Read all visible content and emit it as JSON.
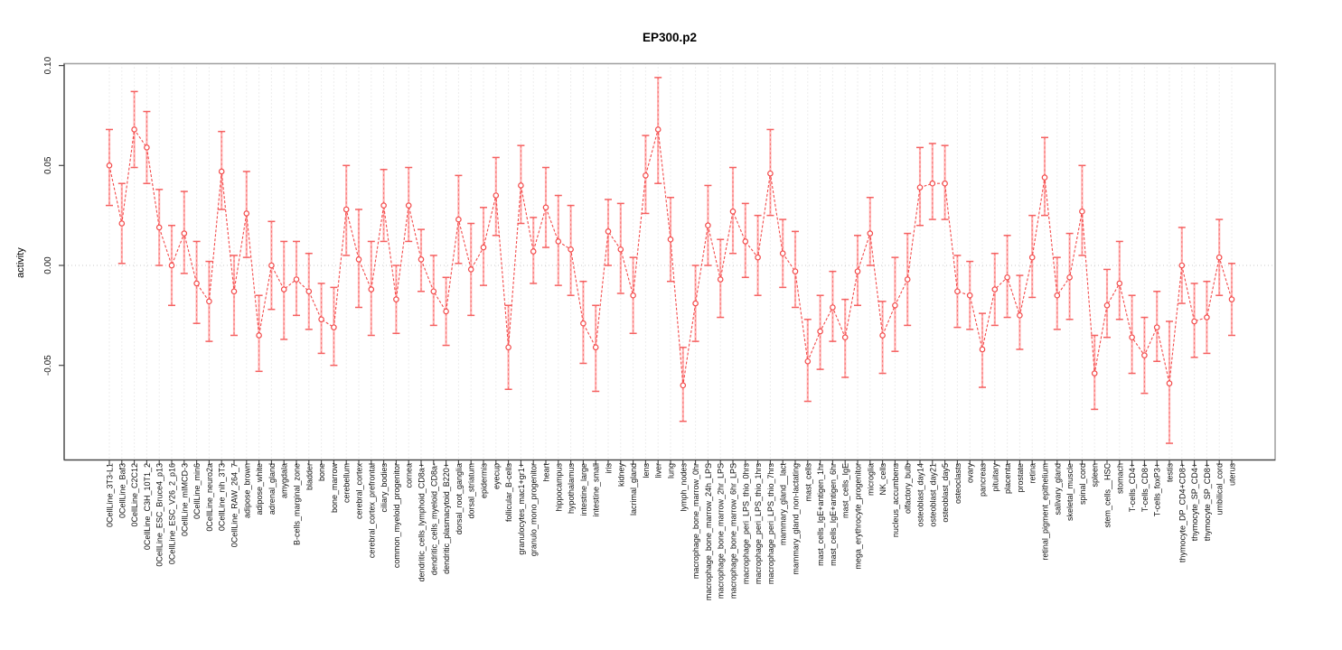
{
  "window": {
    "title": "EP300.p2"
  },
  "chart_data": {
    "type": "line",
    "subtype": "points-with-error-bars",
    "title": "EP300.p2",
    "xlabel": "",
    "ylabel": "activity",
    "ylim": [
      -0.097,
      0.101
    ],
    "yticks": [
      0.1,
      0.05,
      0.0,
      -0.05
    ],
    "ytick_labels": [
      "0.10",
      "0.05",
      "0.00",
      "-0.05"
    ],
    "grid": "vertical dotted gridline at every category; horizontal dotted line at y=0",
    "legend_position": "none",
    "categories": [
      "0CellLine_3T3-L1",
      "0CellLine_Baf3",
      "0CellLine_C2C12",
      "0CellLine_C3H_10T1_2",
      "0CellLine_ESC_Bruce4_p13",
      "0CellLine_ESC_V26_2_p16",
      "0CellLine_mIMCD-3",
      "0CellLine_min6",
      "0CellLine_neuro2a",
      "0CellLine_nih_3T3",
      "0CellLine_RAW_264_7",
      "adipose_brown",
      "adipose_white",
      "adrenal_gland",
      "amygdala",
      "B-cells_marginal_zone",
      "bladder",
      "bone",
      "bone_marrow",
      "cerebellum",
      "cerebral_cortex",
      "cerebral_cortex_prefrontal",
      "ciliary_bodies",
      "common_myeloid_progenitor",
      "cornea",
      "dendritic_cells_lymphoid_CD8a+",
      "dendritic_cells_myeloid_CD8a-",
      "dendritic_plasmacytoid_B220+",
      "dorsal_root_ganglia",
      "dorsal_striatum",
      "epidermis",
      "eyecup",
      "follicular_B-cells",
      "granulocytes_mac1+gr1+",
      "granulo_mono_progenitor",
      "heart",
      "hippocampus",
      "hypothalamus",
      "intestine_large",
      "intestine_small",
      "iris",
      "kidney",
      "lacrimal_gland",
      "lens",
      "liver",
      "lung",
      "lymph_nodes",
      "macrophage_bone_marrow_0hr",
      "macrophage_bone_marrow_24h_LPS",
      "macrophage_bone_marrow_2hr_LPS",
      "macrophage_bone_marrow_6hr_LPS",
      "macrophage_peri_LPS_thio_0hrs",
      "macrophage_peri_LPS_thio_1hrs",
      "macrophage_peri_LPS_thio_7hrs",
      "mammary_gland__lact",
      "mammary_gland_non-lactating",
      "mast_cells",
      "mast_cells_IgE+antigen_1hr",
      "mast_cells_IgE+antigen_6hr",
      "mast_cells_IgE",
      "mega_erythrocyte_progenitor",
      "microglia",
      "NK_cells",
      "nucleus_accumbens",
      "olfactory_bulb",
      "osteoblast_day14",
      "osteoblast_day21",
      "osteoblast_day5",
      "osteoclasts",
      "ovary",
      "pancreas",
      "pituitary",
      "placenta",
      "prostate",
      "retina",
      "retinal_pigment_epithelium",
      "salivary_gland",
      "skeletal_muscle",
      "spinal_cord",
      "spleen",
      "stem_cells__HSC",
      "stomach",
      "T-cells_CD4+",
      "T-cells_CD8+",
      "T-cells_foxP3+",
      "testis",
      "thymocyte_DP_CD4+CD8+",
      "thymocyte_SP_CD4+",
      "thymocyte_SP_CD8+",
      "umbilical_cord",
      "uterus"
    ],
    "values": [
      0.05,
      0.021,
      0.068,
      0.059,
      0.019,
      0.0,
      0.016,
      -0.009,
      -0.018,
      0.047,
      -0.013,
      0.026,
      -0.035,
      0.0,
      -0.012,
      -0.007,
      -0.013,
      -0.027,
      -0.031,
      0.028,
      0.003,
      -0.012,
      0.03,
      -0.017,
      0.03,
      0.003,
      -0.013,
      -0.023,
      0.023,
      -0.002,
      0.009,
      0.035,
      -0.041,
      0.04,
      0.007,
      0.029,
      0.012,
      0.008,
      -0.029,
      -0.041,
      0.017,
      0.008,
      -0.015,
      0.045,
      0.068,
      0.013,
      -0.06,
      -0.019,
      0.02,
      -0.007,
      0.027,
      0.012,
      0.004,
      0.046,
      0.006,
      -0.003,
      -0.048,
      -0.033,
      -0.021,
      -0.036,
      -0.003,
      0.016,
      -0.035,
      -0.02,
      -0.007,
      0.039,
      0.041,
      0.041,
      -0.013,
      -0.015,
      -0.042,
      -0.012,
      -0.006,
      -0.025,
      0.004,
      0.044,
      -0.015,
      -0.006,
      0.027,
      -0.054,
      -0.02,
      -0.009,
      -0.036,
      -0.045,
      -0.031,
      -0.059,
      0.0,
      -0.028,
      -0.026,
      0.004,
      -0.017
    ],
    "lower": [
      0.03,
      0.001,
      0.049,
      0.041,
      0.0,
      -0.02,
      -0.004,
      -0.029,
      -0.038,
      0.028,
      -0.035,
      0.004,
      -0.053,
      -0.022,
      -0.037,
      -0.025,
      -0.032,
      -0.044,
      -0.05,
      0.005,
      -0.021,
      -0.035,
      0.012,
      -0.034,
      0.012,
      -0.013,
      -0.03,
      -0.04,
      0.001,
      -0.025,
      -0.01,
      0.015,
      -0.062,
      0.021,
      -0.009,
      0.009,
      -0.01,
      -0.015,
      -0.049,
      -0.063,
      0.0,
      -0.014,
      -0.034,
      0.026,
      0.041,
      -0.008,
      -0.078,
      -0.038,
      0.0,
      -0.026,
      0.006,
      -0.006,
      -0.015,
      0.025,
      -0.011,
      -0.021,
      -0.068,
      -0.052,
      -0.038,
      -0.056,
      -0.02,
      0.0,
      -0.054,
      -0.043,
      -0.03,
      0.02,
      0.023,
      0.023,
      -0.031,
      -0.032,
      -0.061,
      -0.03,
      -0.026,
      -0.042,
      -0.016,
      0.025,
      -0.032,
      -0.027,
      0.005,
      -0.072,
      -0.036,
      -0.027,
      -0.054,
      -0.064,
      -0.048,
      -0.089,
      -0.019,
      -0.046,
      -0.044,
      -0.015,
      -0.035
    ],
    "upper": [
      0.068,
      0.041,
      0.087,
      0.077,
      0.038,
      0.02,
      0.037,
      0.012,
      0.002,
      0.067,
      0.005,
      0.047,
      -0.015,
      0.022,
      0.012,
      0.012,
      0.006,
      -0.009,
      -0.011,
      0.05,
      0.028,
      0.012,
      0.048,
      0.0,
      0.049,
      0.018,
      0.005,
      -0.006,
      0.045,
      0.021,
      0.029,
      0.054,
      -0.02,
      0.06,
      0.024,
      0.049,
      0.035,
      0.03,
      -0.008,
      -0.02,
      0.033,
      0.031,
      0.004,
      0.065,
      0.094,
      0.034,
      -0.041,
      0.0,
      0.04,
      0.013,
      0.049,
      0.031,
      0.025,
      0.068,
      0.023,
      0.017,
      -0.027,
      -0.015,
      -0.003,
      -0.017,
      0.015,
      0.034,
      -0.018,
      0.004,
      0.016,
      0.059,
      0.061,
      0.06,
      0.005,
      0.002,
      -0.024,
      0.006,
      0.015,
      -0.005,
      0.025,
      0.064,
      0.004,
      0.016,
      0.05,
      -0.035,
      -0.002,
      0.012,
      -0.015,
      -0.026,
      -0.013,
      -0.028,
      0.019,
      -0.009,
      -0.008,
      0.023,
      0.001
    ],
    "colors": {
      "line": "#f34b4b",
      "point_stroke": "#f34b4b",
      "point_fill": "#ffffff",
      "error_stem": "#ffb3b3",
      "error_overlay": "#f56060",
      "error_cap": "#f56060",
      "grid": "#dcdcdc",
      "zero_line": "#c9c9c9",
      "axis": "#454545",
      "box": "#a3a3a3",
      "text": "#111111"
    }
  }
}
